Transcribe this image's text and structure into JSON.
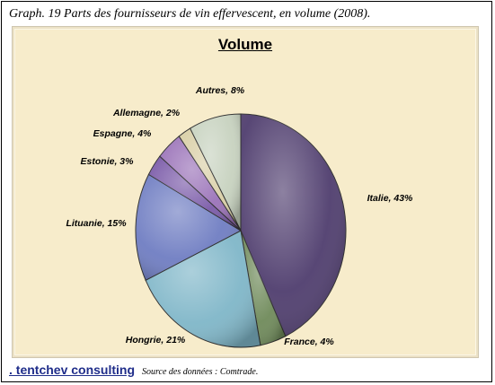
{
  "caption": "Graph. 19 Parts des fournisseurs  de vin effervescent,  en volume (2008).",
  "footer": {
    "brand": ". tentchev consulting",
    "source": "Source des données : Comtrade."
  },
  "chart_data": {
    "type": "pie",
    "title": "Volume",
    "slices": [
      {
        "label": "Italie, 43%",
        "value": 43,
        "color": "#4f3d6e"
      },
      {
        "label": "France, 4%",
        "value": 4,
        "color": "#6f8a5a"
      },
      {
        "label": "Hongrie, 21%",
        "value": 21,
        "color": "#7fb6c8"
      },
      {
        "label": "Lituanie, 15%",
        "value": 15,
        "color": "#6f7dc2"
      },
      {
        "label": "Estonie, 3%",
        "value": 3,
        "color": "#7a5aa8"
      },
      {
        "label": "Espagne, 4%",
        "value": 4,
        "color": "#9a72b8"
      },
      {
        "label": "Allemagne, 2%",
        "value": 2,
        "color": "#d9cfa6"
      },
      {
        "label": "Autres, 8%",
        "value": 8,
        "color": "#c7d2bf"
      }
    ]
  }
}
